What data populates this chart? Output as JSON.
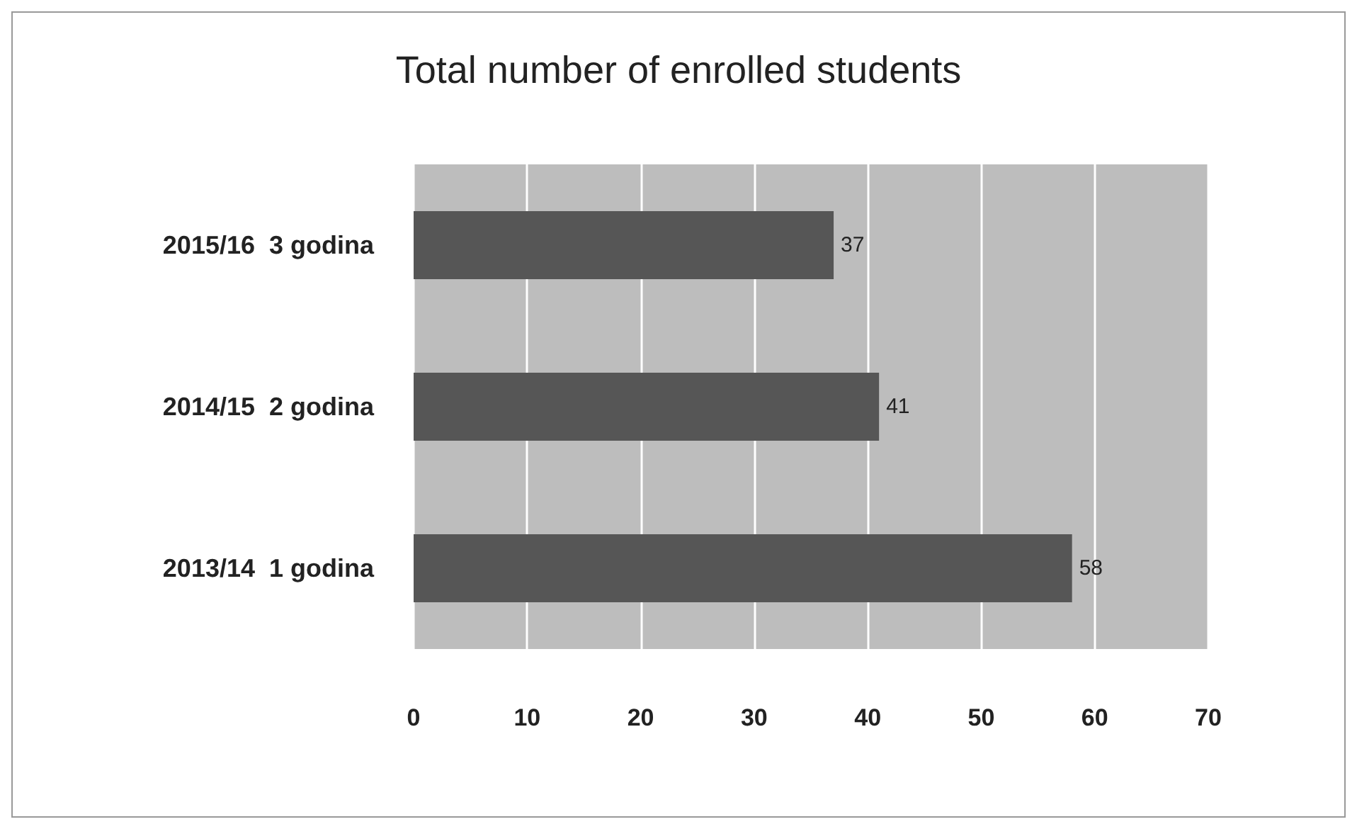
{
  "chart_data": {
    "type": "bar",
    "orientation": "horizontal",
    "title": "Total number of enrolled students",
    "categories": [
      "2015/16  3 godina",
      "2014/15  2 godina",
      "2013/14  1 godina"
    ],
    "values": [
      37,
      41,
      58
    ],
    "color": "#565656",
    "data_labels": true,
    "xlim": [
      0,
      70
    ],
    "xticks": [
      0,
      10,
      20,
      30,
      40,
      50,
      60,
      70
    ],
    "grid": "x"
  }
}
